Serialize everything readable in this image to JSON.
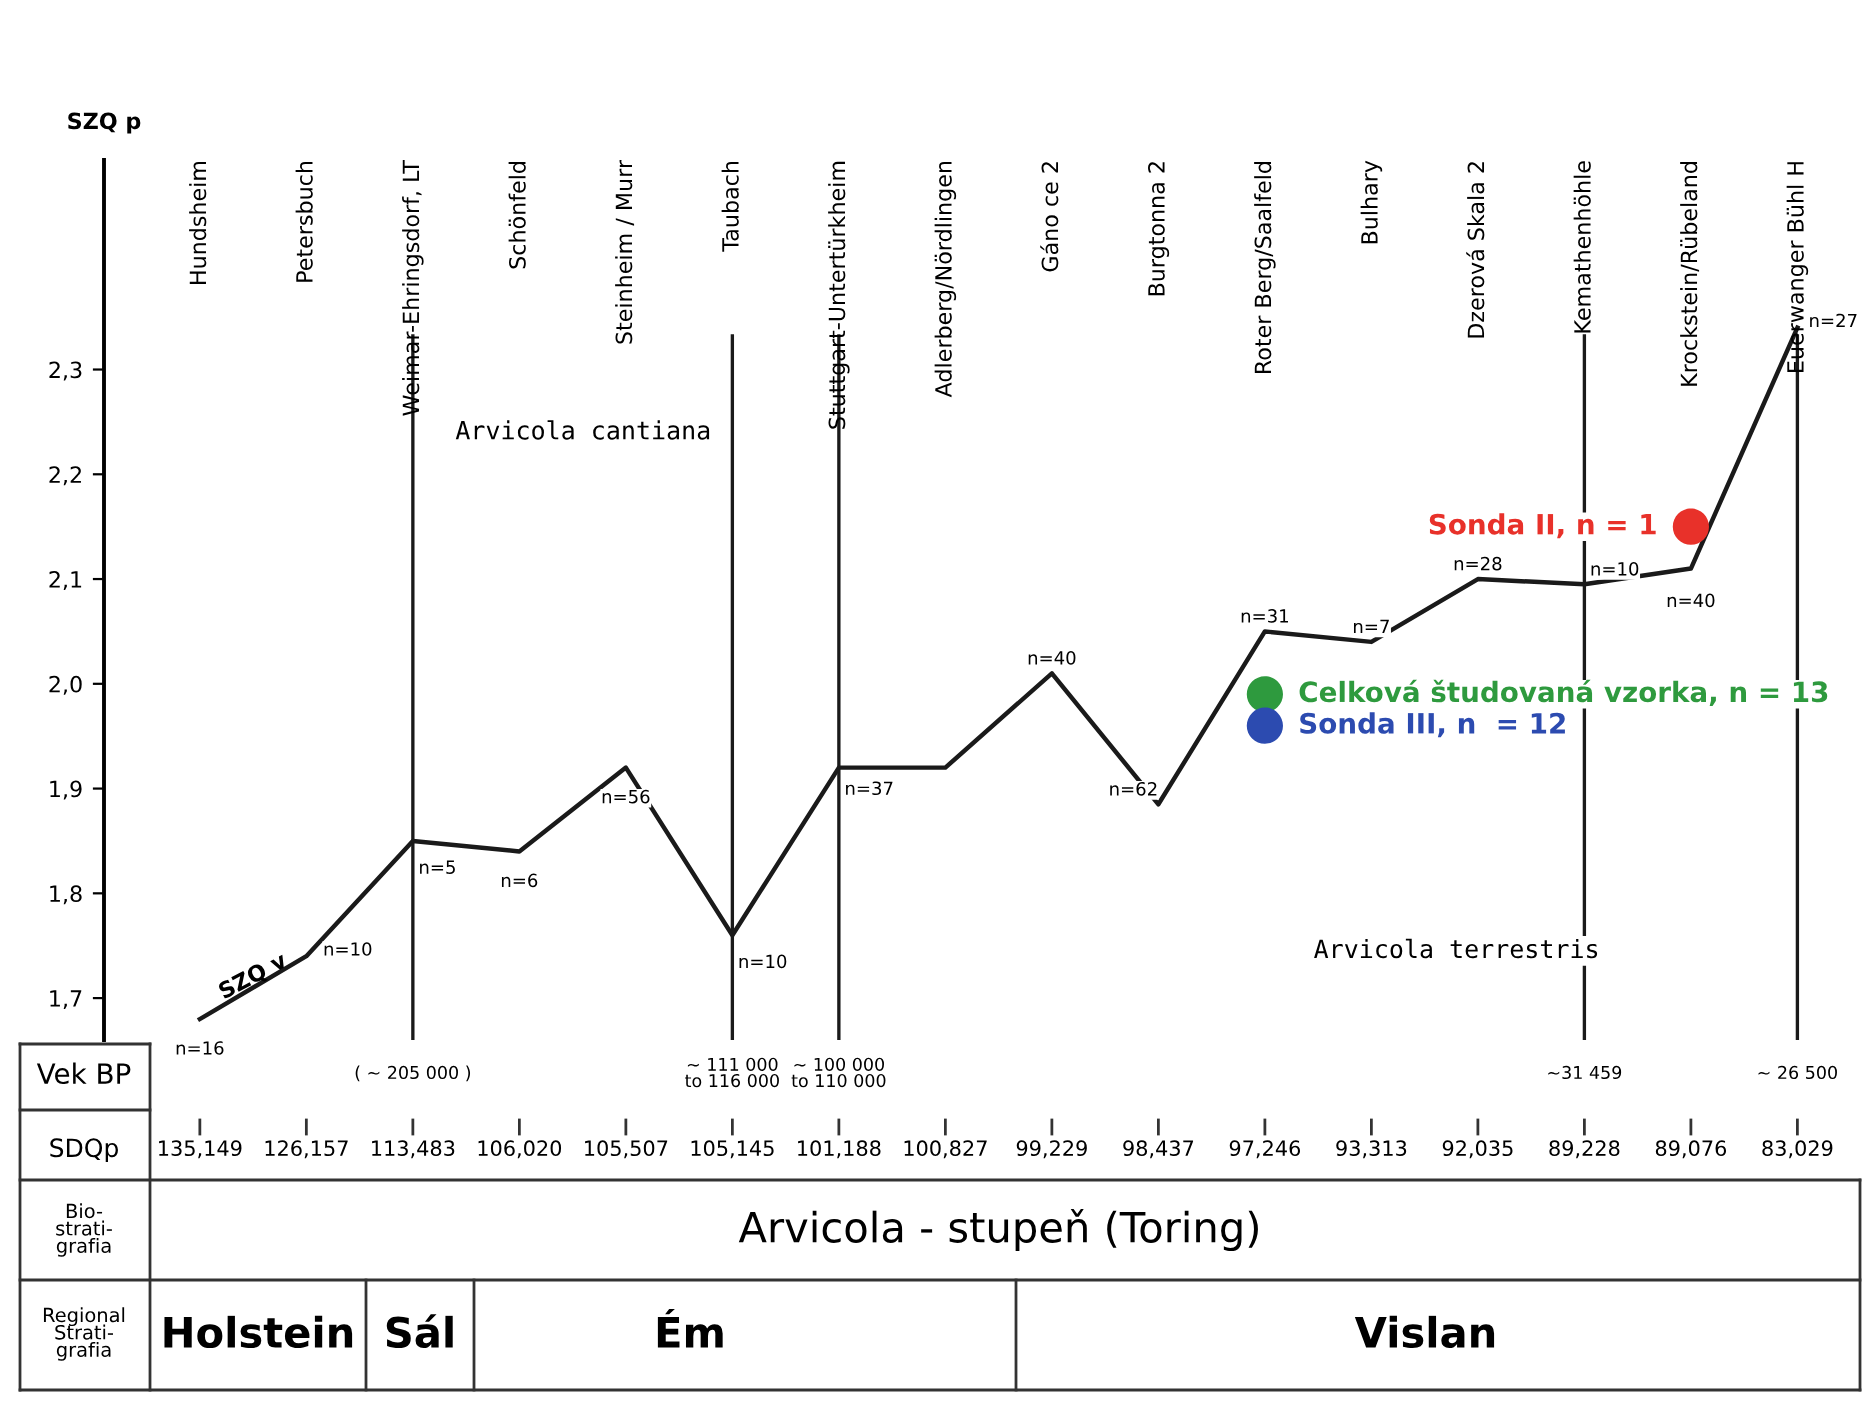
{
  "chart_data": {
    "type": "line",
    "ylabel": "SZQ p",
    "categories": [
      "Hundsheim",
      "Petersbuch",
      "Weimar-Ehringsdorf, LT",
      "Schönfeld",
      "Steinheim / Murr",
      "Taubach",
      "Stuttgart-Untertürkheim",
      "Adlerberg/Nördlingen",
      "Gáno ce 2",
      "Burgtonna 2",
      "Roter Berg/Saalfeld",
      "Bulhary",
      "Dzerová Skala 2",
      "Kemathenhöhle",
      "Krockstein/Rübeland",
      "Euerwanger Bühl H"
    ],
    "series": [
      {
        "color": "#1a1a1a",
        "values": [
          1.68,
          1.74,
          1.85,
          1.84,
          1.92,
          1.76,
          1.92,
          1.92,
          2.01,
          1.885,
          2.05,
          2.04,
          2.1,
          2.095,
          2.11,
          2.34
        ]
      },
      {
        "type": "scatter",
        "name": "Sonda II, n = 1",
        "color": "#e8312a",
        "x": [
          "Krockstein/Rübeland"
        ],
        "values": [
          2.15
        ]
      },
      {
        "type": "scatter",
        "name": "Celková študovaná vzorka, n = 13",
        "color": "#2e9a3e",
        "x": [
          "Roter Berg/Saalfeld"
        ],
        "values": [
          1.99
        ]
      },
      {
        "type": "scatter",
        "name": "Sonda III, n  = 12",
        "color": "#2c4bb0",
        "x": [
          "Roter Berg/Saalfeld"
        ],
        "values": [
          1.96
        ]
      }
    ],
    "ylim": [
      1.66,
      2.5
    ],
    "yticks": [
      {
        "value": 1.7,
        "label": "1,7"
      },
      {
        "value": 1.8,
        "label": "1,8"
      },
      {
        "value": 1.9,
        "label": "1,9"
      },
      {
        "value": 2.0,
        "label": "2,0"
      },
      {
        "value": 2.1,
        "label": "2,1"
      },
      {
        "value": 2.2,
        "label": "2,2"
      },
      {
        "value": 2.3,
        "label": "2,3"
      }
    ],
    "ref_lines": [
      {
        "axis": "x",
        "value": "Weimar-Ehringsdorf, LT",
        "color": "#1a1a1a"
      },
      {
        "axis": "x",
        "value": "Taubach",
        "color": "#1a1a1a"
      },
      {
        "axis": "x",
        "value": "Stuttgart-Untertürkheim",
        "color": "#1a1a1a"
      },
      {
        "axis": "x",
        "value": "Kemathenhöhle",
        "color": "#1a1a1a"
      },
      {
        "axis": "x",
        "value": "Euerwanger Bühl H",
        "color": "#1a1a1a"
      }
    ],
    "annotations": [
      {
        "text": "n=16",
        "x": "Hundsheim",
        "y": 1.68
      },
      {
        "text": "n=10",
        "x": "Petersbuch",
        "y": 1.74
      },
      {
        "text": "n=5",
        "x": "Weimar-Ehringsdorf, LT",
        "y": 1.85
      },
      {
        "text": "n=6",
        "x": "Schönfeld",
        "y": 1.84
      },
      {
        "text": "n=56",
        "x": "Steinheim / Murr",
        "y": 1.92
      },
      {
        "text": "n=10",
        "x": "Taubach",
        "y": 1.76
      },
      {
        "text": "n=37",
        "x": "Stuttgart-Untertürkheim",
        "y": 1.92
      },
      {
        "text": "n=40",
        "x": "Gáno ce 2",
        "y": 2.01
      },
      {
        "text": "n=62",
        "x": "Burgtonna 2",
        "y": 1.885
      },
      {
        "text": "n=31",
        "x": "Roter Berg/Saalfeld",
        "y": 2.05
      },
      {
        "text": "n=7",
        "x": "Bulhary",
        "y": 2.04
      },
      {
        "text": "n=28",
        "x": "Dzerová Skala 2",
        "y": 2.1
      },
      {
        "text": "n=10",
        "x": "Kemathenhöhle",
        "y": 2.095
      },
      {
        "text": "n=40",
        "x": "Krockstein/Rübeland",
        "y": 2.11
      },
      {
        "text": "n=27",
        "x": "Euerwanger Bühl H",
        "y": 2.34
      },
      "135,149",
      "126,157",
      "113,483",
      "106,020",
      "105,507",
      "105,145",
      "101,188",
      "100,827",
      "99,229",
      "98,437",
      "97,246",
      "93,313",
      "92,035",
      "89,228",
      "89,076",
      "83,029",
      "( ~ 205 000 )",
      "~ 111 000\nto 116 000",
      "~ 100 000\nto 110 000",
      "~31 459",
      "~ 26 500",
      "Vek BP",
      "SDQp",
      "Bio-\nstrati-\ngrafia",
      "Regional\nStrati-\ngrafia",
      "Arvicola - stupeň (Toring)",
      "Holstein",
      "Sál",
      "Ém",
      "Vislan",
      "Arvicola cantiana",
      "Arvicola terrestris",
      "SZQ v"
    ]
  }
}
